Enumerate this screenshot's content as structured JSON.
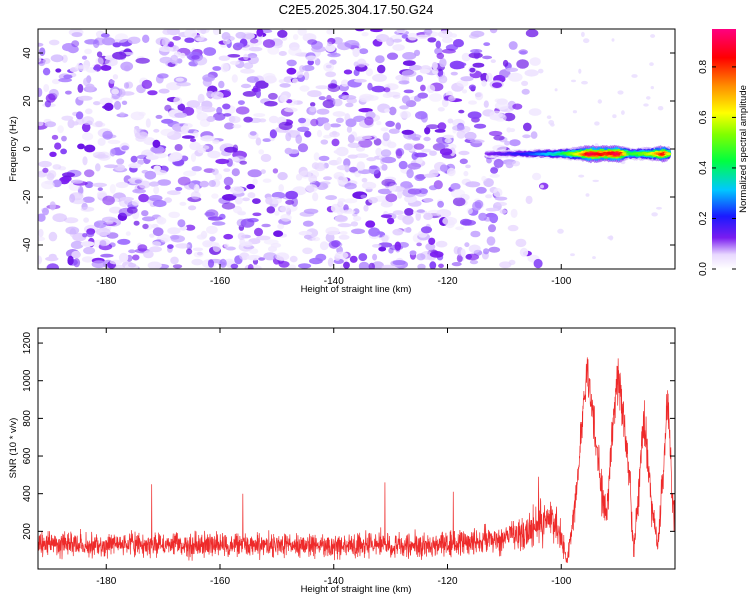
{
  "figure_title": "C2E5.2025.304.17.50.G24",
  "colors": {
    "snr_line": "#ee2a2a",
    "frame": "#000000",
    "background": "#ffffff",
    "noise_purple": "#7a1cf0"
  },
  "chart_data": [
    {
      "type": "heatmap",
      "title": "C2E5.2025.304.17.50.G24",
      "xlabel": "Height of straight line (km)",
      "ylabel": "Frequency (Hz)",
      "xlim": [
        -192,
        -80
      ],
      "ylim": [
        -50,
        50
      ],
      "xticks": [
        -180,
        -160,
        -140,
        -120,
        -100
      ],
      "xtick_labels": [
        "-180",
        "-160",
        "-140",
        "-120",
        "-100"
      ],
      "yticks": [
        -40,
        -20,
        0,
        20,
        40
      ],
      "ytick_labels": [
        "-40",
        "-20",
        "0",
        "20",
        "40"
      ],
      "colorbar": {
        "label": "Normalized spectral amplitude",
        "range": [
          0,
          0.95
        ],
        "ticks": [
          0.0,
          0.2,
          0.4,
          0.6,
          0.8
        ],
        "tick_labels": [
          "0.0",
          "0.2",
          "0.4",
          "0.6",
          "0.8"
        ],
        "colormap": "gist_rainbow_r"
      },
      "noise_region": {
        "x_range": [
          -192,
          -104
        ],
        "freq_range": [
          -50,
          50
        ],
        "amplitude_range": [
          0.0,
          0.25
        ]
      },
      "signal_track": {
        "frequency_hz": -2,
        "points": [
          {
            "height_km": -113,
            "amplitude": 0.12
          },
          {
            "height_km": -110,
            "amplitude": 0.16
          },
          {
            "height_km": -106,
            "amplitude": 0.22
          },
          {
            "height_km": -103,
            "amplitude": 0.3
          },
          {
            "height_km": -100,
            "amplitude": 0.4
          },
          {
            "height_km": -97,
            "amplitude": 0.62
          },
          {
            "height_km": -95,
            "amplitude": 0.9
          },
          {
            "height_km": -92,
            "amplitude": 0.8
          },
          {
            "height_km": -90,
            "amplitude": 0.92
          },
          {
            "height_km": -88,
            "amplitude": 0.45
          },
          {
            "height_km": -86,
            "amplitude": 0.5
          },
          {
            "height_km": -84,
            "amplitude": 0.6
          },
          {
            "height_km": -82,
            "amplitude": 0.85
          },
          {
            "height_km": -81,
            "amplitude": 0.55
          }
        ]
      }
    },
    {
      "type": "line",
      "xlabel": "Height of straight line (km)",
      "ylabel": "SNR (10 * v/v)",
      "xlim": [
        -192,
        -80
      ],
      "ylim": [
        0,
        1280
      ],
      "xticks": [
        -180,
        -160,
        -140,
        -120,
        -100
      ],
      "xtick_labels": [
        "-180",
        "-160",
        "-140",
        "-120",
        "-100"
      ],
      "yticks": [
        200,
        400,
        600,
        800,
        1000,
        1200
      ],
      "ytick_labels": [
        "200",
        "400",
        "600",
        "800",
        "1000",
        "1200"
      ],
      "series": [
        {
          "name": "SNR",
          "color": "#ee2a2a",
          "envelope": [
            {
              "x": -192,
              "baseline": 130,
              "noise": 70
            },
            {
              "x": -180,
              "baseline": 130,
              "noise": 70
            },
            {
              "x": -160,
              "baseline": 130,
              "noise": 70
            },
            {
              "x": -140,
              "baseline": 125,
              "noise": 70
            },
            {
              "x": -120,
              "baseline": 130,
              "noise": 75
            },
            {
              "x": -110,
              "baseline": 160,
              "noise": 85
            },
            {
              "x": -105,
              "baseline": 220,
              "noise": 110
            },
            {
              "x": -102,
              "baseline": 270,
              "noise": 120
            },
            {
              "x": -100,
              "baseline": 180,
              "noise": 90
            },
            {
              "x": -99,
              "baseline": 40,
              "noise": 40
            },
            {
              "x": -97.5,
              "baseline": 350,
              "noise": 100
            },
            {
              "x": -95.5,
              "baseline": 1080,
              "noise": 120
            },
            {
              "x": -94,
              "baseline": 700,
              "noise": 140
            },
            {
              "x": -93,
              "baseline": 420,
              "noise": 120
            },
            {
              "x": -92,
              "baseline": 300,
              "noise": 100
            },
            {
              "x": -91,
              "baseline": 750,
              "noise": 130
            },
            {
              "x": -90,
              "baseline": 1050,
              "noise": 150
            },
            {
              "x": -89,
              "baseline": 800,
              "noise": 150
            },
            {
              "x": -88,
              "baseline": 500,
              "noise": 120
            },
            {
              "x": -87.3,
              "baseline": 80,
              "noise": 60
            },
            {
              "x": -86.5,
              "baseline": 380,
              "noise": 110
            },
            {
              "x": -85.5,
              "baseline": 820,
              "noise": 120
            },
            {
              "x": -84.8,
              "baseline": 600,
              "noise": 120
            },
            {
              "x": -84,
              "baseline": 300,
              "noise": 100
            },
            {
              "x": -83,
              "baseline": 120,
              "noise": 80
            },
            {
              "x": -82,
              "baseline": 550,
              "noise": 130
            },
            {
              "x": -81.3,
              "baseline": 950,
              "noise": 150
            },
            {
              "x": -80.5,
              "baseline": 380,
              "noise": 120
            },
            {
              "x": -80,
              "baseline": 250,
              "noise": 120
            }
          ],
          "spikes": [
            {
              "x": -172,
              "y": 450
            },
            {
              "x": -156,
              "y": 400
            },
            {
              "x": -131,
              "y": 460
            },
            {
              "x": -119,
              "y": 410
            },
            {
              "x": -104,
              "y": 490
            }
          ]
        }
      ]
    }
  ]
}
